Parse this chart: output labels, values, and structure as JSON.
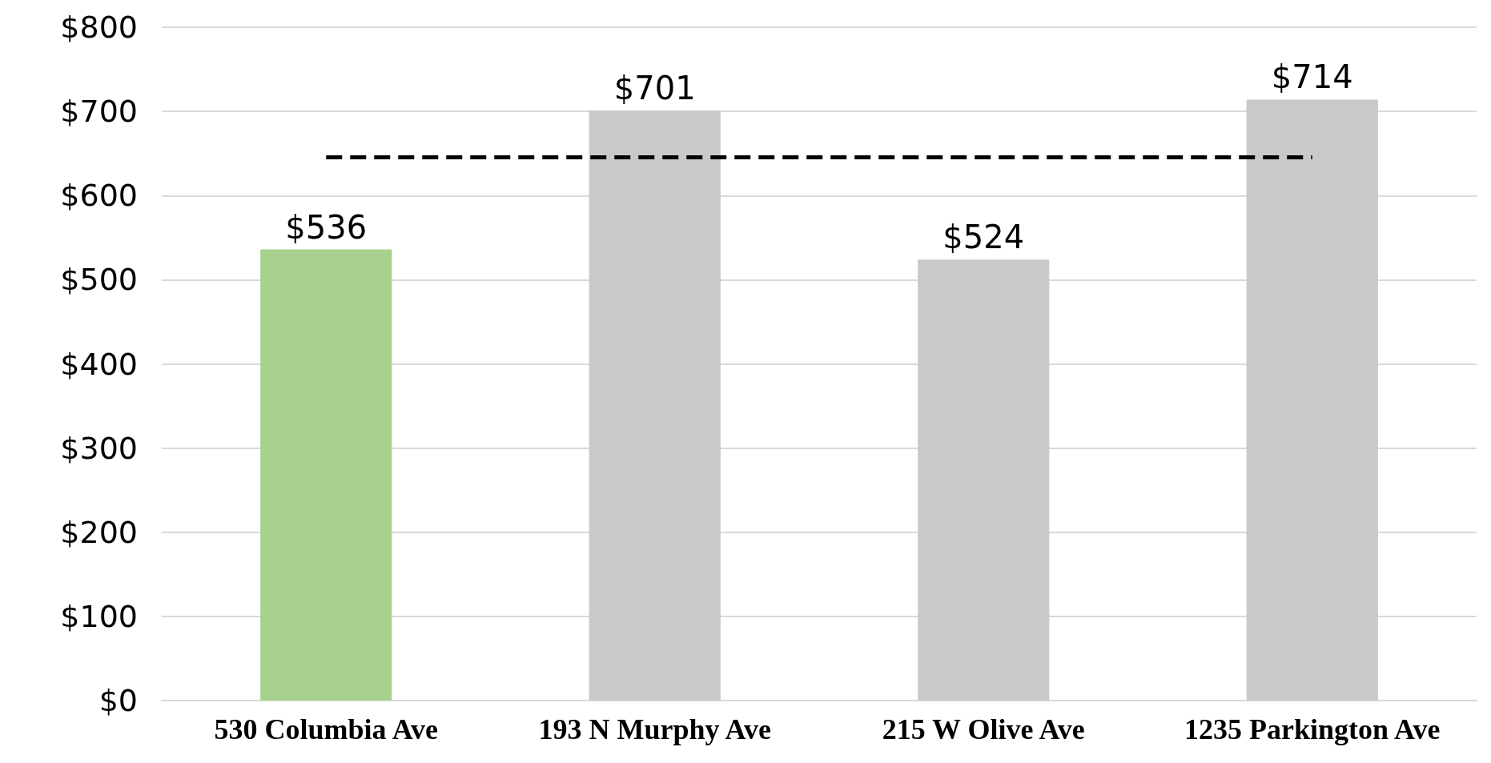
{
  "chart_data": {
    "type": "bar",
    "categories": [
      "530 Columbia Ave",
      "193 N Murphy Ave",
      "215 W Olive Ave",
      "1235 Parkington Ave"
    ],
    "values": [
      536,
      701,
      524,
      714
    ],
    "colors": [
      "#a9d18e",
      "#c9c9c9",
      "#c9c9c9",
      "#c9c9c9"
    ],
    "value_labels": [
      "$536",
      "$701",
      "$524",
      "$714"
    ],
    "ylim": [
      0,
      800
    ],
    "yticks": [
      {
        "value": 0,
        "label": "$0"
      },
      {
        "value": 100,
        "label": "$100"
      },
      {
        "value": 200,
        "label": "$200"
      },
      {
        "value": 300,
        "label": "$300"
      },
      {
        "value": 400,
        "label": "$400"
      },
      {
        "value": 500,
        "label": "$500"
      },
      {
        "value": 600,
        "label": "$600"
      },
      {
        "value": 700,
        "label": "$700"
      },
      {
        "value": 800,
        "label": "$800"
      }
    ],
    "ref_lines": [
      {
        "axis": "y",
        "value": 646,
        "color": "#000000",
        "line_style": "dashed"
      }
    ],
    "grid": "y"
  }
}
